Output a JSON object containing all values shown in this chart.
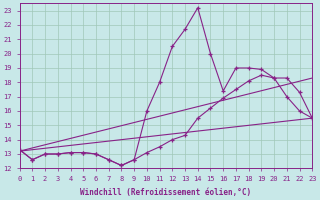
{
  "xlabel": "Windchill (Refroidissement éolien,°C)",
  "xlim": [
    0,
    23
  ],
  "ylim": [
    12,
    23.5
  ],
  "xticks": [
    0,
    1,
    2,
    3,
    4,
    5,
    6,
    7,
    8,
    9,
    10,
    11,
    12,
    13,
    14,
    15,
    16,
    17,
    18,
    19,
    20,
    21,
    22,
    23
  ],
  "yticks": [
    12,
    13,
    14,
    15,
    16,
    17,
    18,
    19,
    20,
    21,
    22,
    23
  ],
  "bg_color": "#c8e8e8",
  "grid_color": "#a0c8b8",
  "line_color": "#882288",
  "lines": [
    {
      "x": [
        0,
        1,
        2,
        3,
        4,
        5,
        6,
        7,
        8,
        9,
        10,
        11,
        12,
        13,
        14,
        15,
        16,
        17,
        18,
        19,
        20,
        21,
        22,
        23
      ],
      "y": [
        13.3,
        12.6,
        13.0,
        13.0,
        13.1,
        13.1,
        13.0,
        12.6,
        12.2,
        12.6,
        13.1,
        13.5,
        14.0,
        14.3,
        15.5,
        16.2,
        16.9,
        17.5,
        18.1,
        18.5,
        18.3,
        18.3,
        17.3,
        15.5
      ],
      "marker": true
    },
    {
      "x": [
        0,
        1,
        2,
        3,
        4,
        5,
        6,
        7,
        8,
        9,
        10,
        11,
        12,
        13,
        14,
        15,
        16,
        17,
        18,
        19,
        20,
        21,
        22,
        23
      ],
      "y": [
        13.3,
        12.6,
        13.0,
        13.0,
        13.1,
        13.1,
        13.0,
        12.6,
        12.2,
        12.6,
        16.0,
        18.0,
        20.5,
        21.7,
        23.2,
        20.0,
        17.4,
        19.0,
        19.0,
        18.9,
        18.3,
        17.0,
        16.0,
        15.5
      ],
      "marker": true
    },
    {
      "x": [
        0,
        23
      ],
      "y": [
        13.2,
        15.5
      ],
      "marker": false
    },
    {
      "x": [
        0,
        23
      ],
      "y": [
        13.2,
        18.3
      ],
      "marker": false
    }
  ]
}
